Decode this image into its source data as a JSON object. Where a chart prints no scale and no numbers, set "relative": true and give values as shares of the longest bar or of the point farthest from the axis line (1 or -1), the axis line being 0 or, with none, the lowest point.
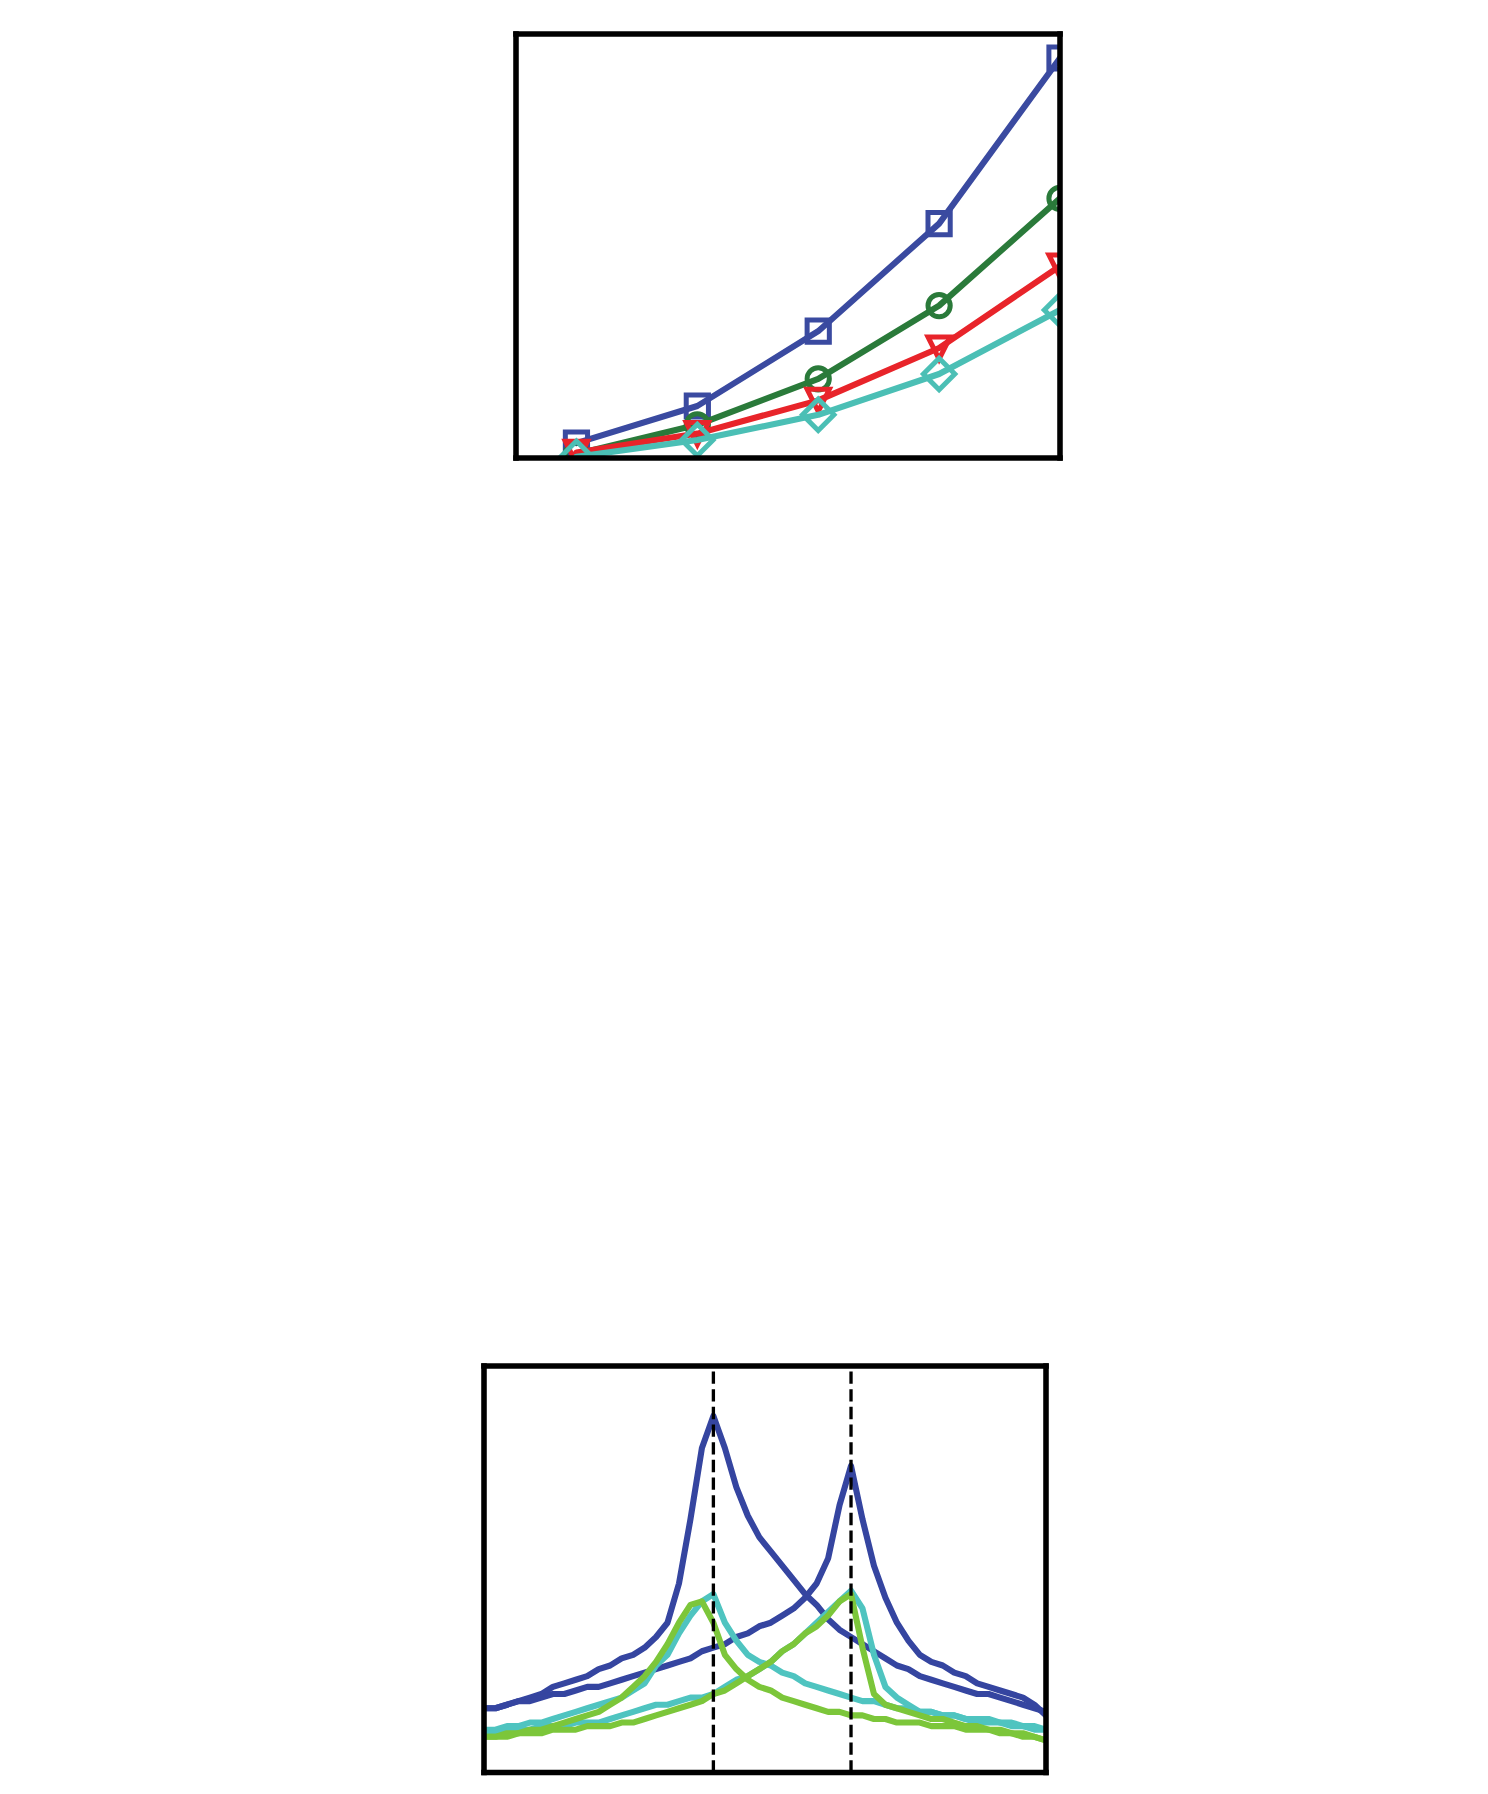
{
  "chart_data": [
    {
      "type": "line",
      "relative": true,
      "categories": [
        null,
        null,
        null,
        null,
        null
      ],
      "line_style": "solid",
      "grid": false,
      "series": [
        {
          "color": "#3a4aa0",
          "marker": "square",
          "values": [
            0.037,
            0.13,
            0.317,
            0.586,
            1.0
          ]
        },
        {
          "color": "#2a7a3a",
          "marker": "circle",
          "values": [
            0.01,
            0.083,
            0.198,
            0.381,
            0.649
          ]
        },
        {
          "color": "#e8242a",
          "marker": "triangle",
          "values": [
            0.014,
            0.061,
            0.144,
            0.275,
            0.48
          ]
        },
        {
          "color": "#4bbfb5",
          "marker": "diamond",
          "values": [
            0.003,
            0.045,
            0.108,
            0.21,
            0.37
          ]
        }
      ]
    },
    {
      "type": "line",
      "relative": true,
      "line_style": "solid",
      "grid": false,
      "marker": "none",
      "categories": [
        null,
        null,
        null,
        null,
        null,
        null,
        null,
        null,
        null,
        null,
        null,
        null,
        null,
        null,
        null,
        null,
        null,
        null,
        null,
        null,
        null,
        null,
        null,
        null,
        null,
        null,
        null,
        null,
        null,
        null,
        null,
        null,
        null,
        null,
        null,
        null,
        null,
        null,
        null,
        null,
        null,
        null,
        null,
        null,
        null,
        null,
        null,
        null,
        null,
        null
      ],
      "series": [
        {
          "color": "#3545a0",
          "values": [
            0.18,
            0.18,
            0.19,
            0.2,
            0.21,
            0.22,
            0.24,
            0.25,
            0.26,
            0.27,
            0.29,
            0.3,
            0.32,
            0.33,
            0.35,
            0.38,
            0.42,
            0.53,
            0.71,
            0.91,
            1.0,
            0.91,
            0.8,
            0.72,
            0.66,
            0.62,
            0.58,
            0.54,
            0.5,
            0.47,
            0.43,
            0.4,
            0.38,
            0.36,
            0.34,
            0.32,
            0.3,
            0.29,
            0.27,
            0.26,
            0.25,
            0.24,
            0.23,
            0.22,
            0.22,
            0.21,
            0.2,
            0.19,
            0.18,
            0.17
          ]
        },
        {
          "color": "#3545a0",
          "values": [
            0.18,
            0.18,
            0.19,
            0.2,
            0.2,
            0.21,
            0.22,
            0.22,
            0.23,
            0.24,
            0.24,
            0.25,
            0.26,
            0.27,
            0.28,
            0.29,
            0.3,
            0.31,
            0.32,
            0.34,
            0.35,
            0.36,
            0.38,
            0.39,
            0.41,
            0.42,
            0.44,
            0.46,
            0.49,
            0.53,
            0.6,
            0.75,
            0.86,
            0.71,
            0.58,
            0.49,
            0.42,
            0.37,
            0.33,
            0.31,
            0.3,
            0.28,
            0.27,
            0.25,
            0.24,
            0.23,
            0.22,
            0.21,
            0.19,
            0.16
          ]
        },
        {
          "color": "#4fc4c0",
          "values": [
            0.12,
            0.12,
            0.13,
            0.13,
            0.14,
            0.14,
            0.15,
            0.16,
            0.17,
            0.18,
            0.19,
            0.2,
            0.21,
            0.23,
            0.25,
            0.3,
            0.33,
            0.39,
            0.44,
            0.48,
            0.5,
            0.42,
            0.37,
            0.33,
            0.31,
            0.3,
            0.28,
            0.27,
            0.25,
            0.24,
            0.23,
            0.22,
            0.21,
            0.2,
            0.2,
            0.19,
            0.18,
            0.18,
            0.17,
            0.17,
            0.16,
            0.16,
            0.15,
            0.15,
            0.15,
            0.14,
            0.14,
            0.13,
            0.13,
            0.12
          ]
        },
        {
          "color": "#4fc4c0",
          "values": [
            0.11,
            0.11,
            0.12,
            0.12,
            0.12,
            0.13,
            0.13,
            0.13,
            0.14,
            0.14,
            0.14,
            0.15,
            0.16,
            0.17,
            0.18,
            0.19,
            0.19,
            0.2,
            0.21,
            0.21,
            0.22,
            0.24,
            0.26,
            0.27,
            0.29,
            0.31,
            0.34,
            0.36,
            0.39,
            0.42,
            0.45,
            0.48,
            0.51,
            0.46,
            0.33,
            0.24,
            0.21,
            0.19,
            0.17,
            0.17,
            0.16,
            0.16,
            0.15,
            0.14,
            0.14,
            0.14,
            0.13,
            0.13,
            0.12,
            0.12
          ]
        },
        {
          "color": "#7cc63a",
          "values": [
            0.1,
            0.1,
            0.11,
            0.11,
            0.12,
            0.12,
            0.13,
            0.14,
            0.15,
            0.16,
            0.17,
            0.19,
            0.21,
            0.24,
            0.27,
            0.31,
            0.36,
            0.42,
            0.47,
            0.48,
            0.42,
            0.33,
            0.29,
            0.26,
            0.24,
            0.23,
            0.21,
            0.2,
            0.19,
            0.18,
            0.17,
            0.17,
            0.16,
            0.16,
            0.15,
            0.15,
            0.14,
            0.14,
            0.14,
            0.13,
            0.13,
            0.13,
            0.12,
            0.12,
            0.12,
            0.11,
            0.11,
            0.1,
            0.1,
            0.09
          ]
        },
        {
          "color": "#7cc63a",
          "values": [
            0.1,
            0.1,
            0.1,
            0.11,
            0.11,
            0.11,
            0.12,
            0.12,
            0.12,
            0.13,
            0.13,
            0.13,
            0.14,
            0.14,
            0.15,
            0.16,
            0.17,
            0.18,
            0.19,
            0.2,
            0.22,
            0.23,
            0.25,
            0.27,
            0.29,
            0.31,
            0.34,
            0.36,
            0.39,
            0.41,
            0.44,
            0.48,
            0.5,
            0.35,
            0.22,
            0.19,
            0.18,
            0.17,
            0.16,
            0.15,
            0.15,
            0.14,
            0.13,
            0.13,
            0.12,
            0.12,
            0.11,
            0.11,
            0.1,
            0.09
          ]
        }
      ]
    }
  ]
}
